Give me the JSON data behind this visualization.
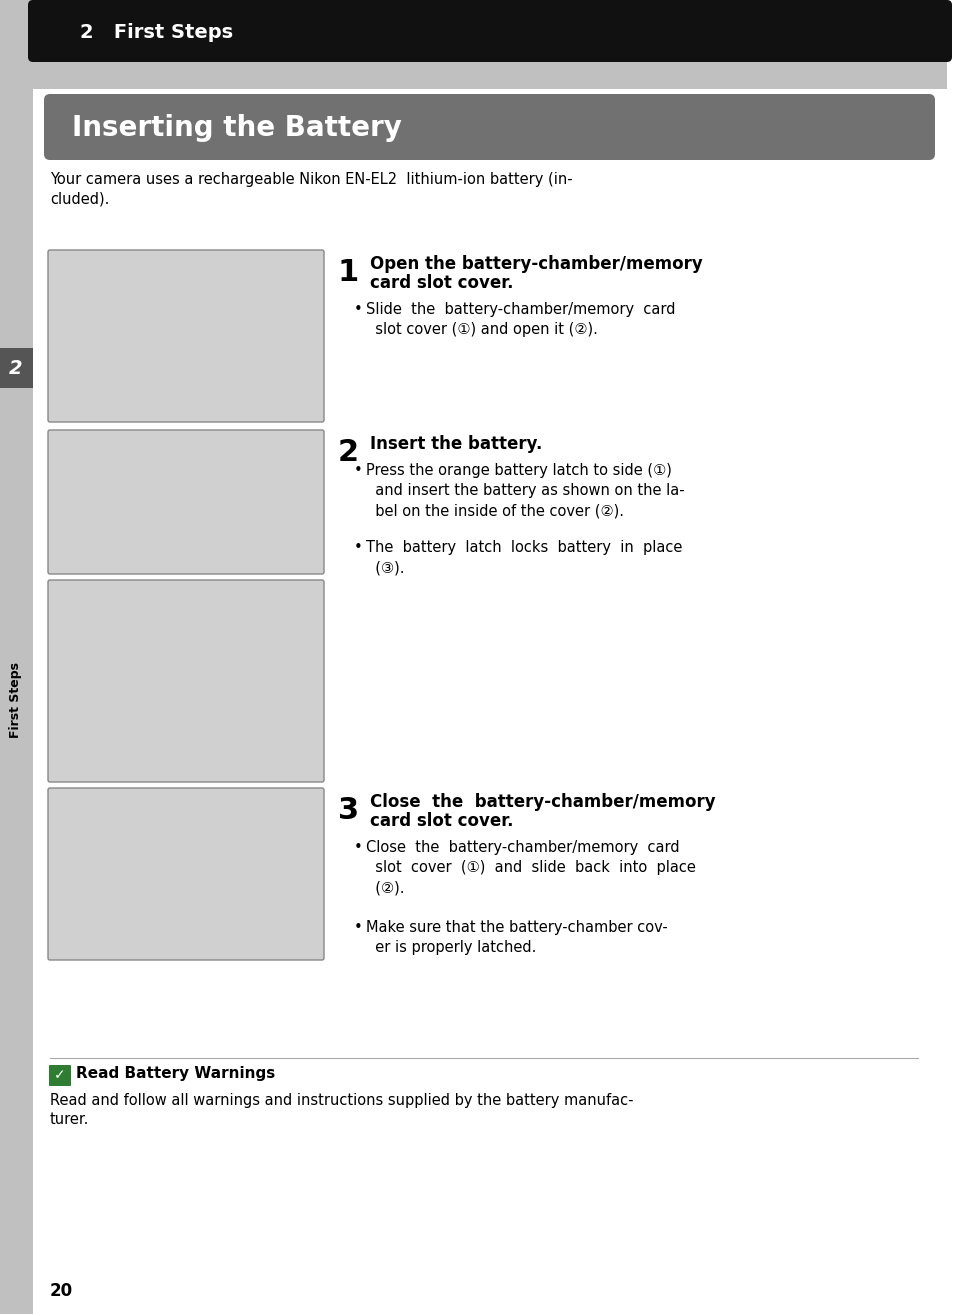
{
  "page_bg": "#ffffff",
  "outer_left_bg": "#c0c0c0",
  "header_bar_color": "#111111",
  "header_text": "2   First Steps",
  "header_text_color": "#ffffff",
  "gray_strip_color": "#c0c0c0",
  "section_bar_color": "#717171",
  "section_title": "Inserting the Battery",
  "section_title_color": "#ffffff",
  "intro_line1": "Your camera uses a rechargeable Nikon EN-EL2  lithium-ion battery (in-",
  "intro_line2": "cluded).",
  "step1_num": "1",
  "step1_title_line1": "Open the battery-chamber/memory",
  "step1_title_line2": "card slot cover.",
  "step1_bullet": "Slide  the  battery-chamber/memory  card\n  slot cover (①) and open it (②).",
  "step2_num": "2",
  "step2_title": "Insert the battery.",
  "step2_bullet1": "Press the orange battery latch to side (①)\n  and insert the battery as shown on the la-\n  bel on the inside of the cover (②).",
  "step2_bullet2": "The  battery  latch  locks  battery  in  place\n  (③).",
  "step3_num": "3",
  "step3_title_line1": "Close  the  battery-chamber/memory",
  "step3_title_line2": "card slot cover.",
  "step3_bullet1": "Close  the  battery-chamber/memory  card\n  slot  cover  (①)  and  slide  back  into  place\n  (②).",
  "step3_bullet2": "Make sure that the battery-chamber cov-\n  er is properly latched.",
  "warning_icon_color": "#2e7d32",
  "warning_title": "Read Battery Warnings",
  "warning_text_line1": "Read and follow all warnings and instructions supplied by the battery manufac-",
  "warning_text_line2": "turer.",
  "page_num": "20",
  "sidebar_label": "2",
  "sidebar_text": "First Steps",
  "sidebar_num_bg": "#555555",
  "img_fill": "#d0d0d0",
  "img_border": "#888888",
  "text_color": "#000000"
}
